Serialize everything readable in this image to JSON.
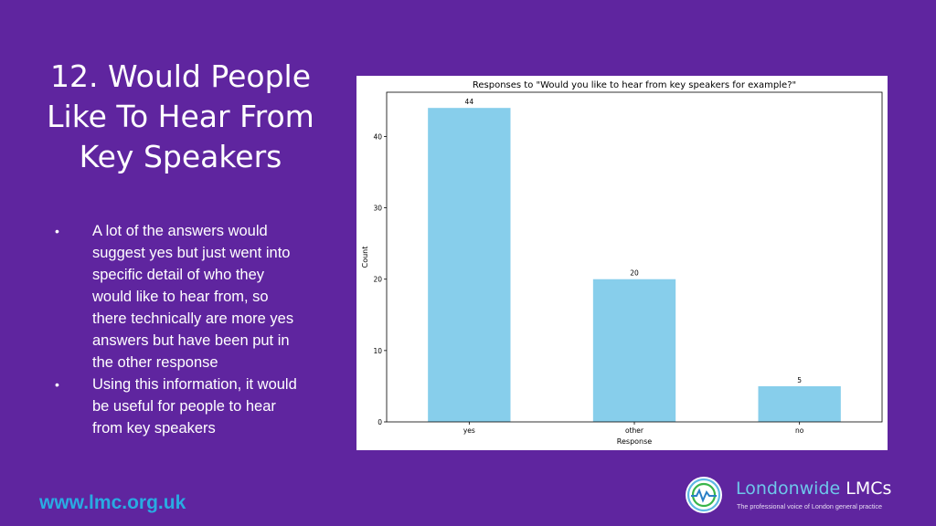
{
  "slide": {
    "title": "12. Would People Like To Hear From Key Speakers",
    "bullets": [
      "A lot of the answers would suggest yes but just went into specific detail of who they would like to hear from, so there technically are more yes answers but have been put in the other response",
      "Using this information, it would be useful for people to hear from key speakers"
    ],
    "bullet_symbol": "•",
    "website": "www.lmc.org.uk"
  },
  "logo": {
    "name_part1": "Londonwide ",
    "name_part2": "LMCs",
    "tagline": "The professional voice of London general practice"
  },
  "colors": {
    "background": "#5f259f",
    "bar": "#87ceeb",
    "website": "#29abe2"
  },
  "chart_data": {
    "type": "bar",
    "title": "Responses to \"Would you like to hear from key speakers for example?\"",
    "xlabel": "Response",
    "ylabel": "Count",
    "categories": [
      "yes",
      "other",
      "no"
    ],
    "values": [
      44,
      20,
      5
    ],
    "data_labels": [
      "44",
      "20",
      "5"
    ],
    "ylim": [
      0,
      46.2
    ],
    "yticks": [
      0,
      10,
      20,
      30,
      40
    ],
    "grid": false,
    "legend": "none"
  }
}
